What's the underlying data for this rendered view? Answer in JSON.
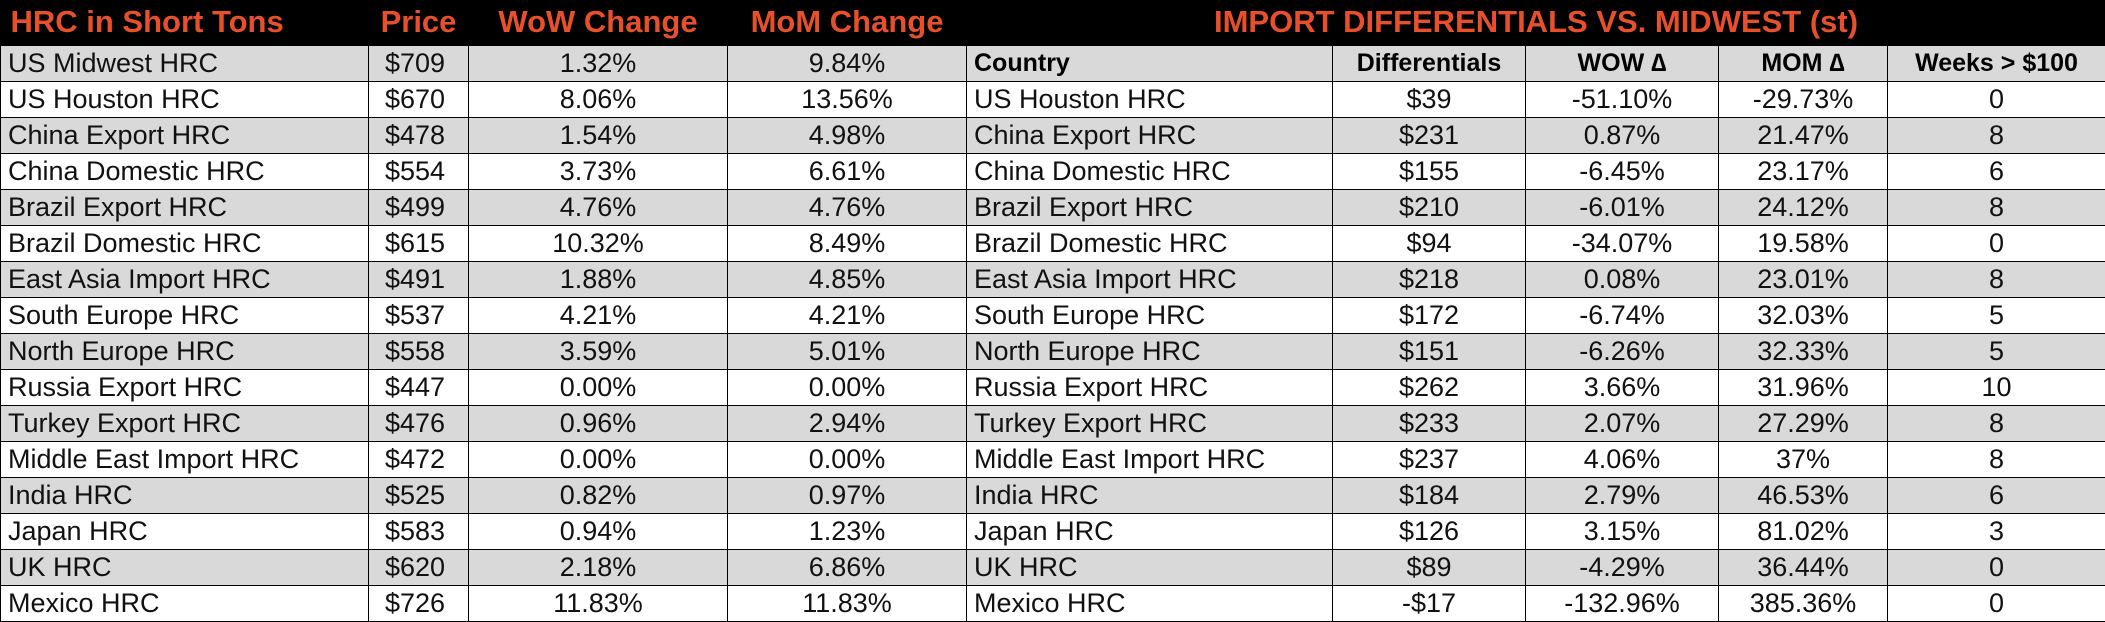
{
  "left_table": {
    "headers": [
      "HRC in Short Tons",
      "Price",
      "WoW Change",
      "MoM Change"
    ],
    "rows": [
      [
        "US Midwest HRC",
        "$709",
        "1.32%",
        "9.84%"
      ],
      [
        "US Houston HRC",
        "$670",
        "8.06%",
        "13.56%"
      ],
      [
        "China Export HRC",
        "$478",
        "1.54%",
        "4.98%"
      ],
      [
        "China Domestic HRC",
        "$554",
        "3.73%",
        "6.61%"
      ],
      [
        "Brazil Export HRC",
        "$499",
        "4.76%",
        "4.76%"
      ],
      [
        "Brazil Domestic HRC",
        "$615",
        "10.32%",
        "8.49%"
      ],
      [
        "East Asia Import HRC",
        "$491",
        "1.88%",
        "4.85%"
      ],
      [
        "South Europe HRC",
        "$537",
        "4.21%",
        "4.21%"
      ],
      [
        "North Europe HRC",
        "$558",
        "3.59%",
        "5.01%"
      ],
      [
        "Russia Export HRC",
        "$447",
        "0.00%",
        "0.00%"
      ],
      [
        "Turkey Export HRC",
        "$476",
        "0.96%",
        "2.94%"
      ],
      [
        "Middle East Import HRC",
        "$472",
        "0.00%",
        "0.00%"
      ],
      [
        "India HRC",
        "$525",
        "0.82%",
        "0.97%"
      ],
      [
        "Japan HRC",
        "$583",
        "0.94%",
        "1.23%"
      ],
      [
        "UK HRC",
        "$620",
        "2.18%",
        "6.86%"
      ],
      [
        "Mexico HRC",
        "$726",
        "11.83%",
        "11.83%"
      ]
    ]
  },
  "right_table": {
    "title": "IMPORT DIFFERENTIALS VS. MIDWEST (st)",
    "headers": [
      "Country",
      "Differentials",
      "WOW ∆",
      "MOM ∆",
      "Weeks > $100"
    ],
    "rows": [
      [
        "US Houston HRC",
        "$39",
        "-51.10%",
        "-29.73%",
        "0"
      ],
      [
        "China Export HRC",
        "$231",
        "0.87%",
        "21.47%",
        "8"
      ],
      [
        "China Domestic HRC",
        "$155",
        "-6.45%",
        "23.17%",
        "6"
      ],
      [
        "Brazil Export HRC",
        "$210",
        "-6.01%",
        "24.12%",
        "8"
      ],
      [
        "Brazil Domestic HRC",
        "$94",
        "-34.07%",
        "19.58%",
        "0"
      ],
      [
        "East Asia Import HRC",
        "$218",
        "0.08%",
        "23.01%",
        "8"
      ],
      [
        "South Europe HRC",
        "$172",
        "-6.74%",
        "32.03%",
        "5"
      ],
      [
        "North Europe HRC",
        "$151",
        "-6.26%",
        "32.33%",
        "5"
      ],
      [
        "Russia Export HRC",
        "$262",
        "3.66%",
        "31.96%",
        "10"
      ],
      [
        "Turkey Export HRC",
        "$233",
        "2.07%",
        "27.29%",
        "8"
      ],
      [
        "Middle East Import HRC",
        "$237",
        "4.06%",
        "37%",
        "8"
      ],
      [
        "India HRC",
        "$184",
        "2.79%",
        "46.53%",
        "6"
      ],
      [
        "Japan HRC",
        "$126",
        "3.15%",
        "81.02%",
        "3"
      ],
      [
        "UK HRC",
        "$89",
        "-4.29%",
        "36.44%",
        "0"
      ],
      [
        "Mexico HRC",
        "-$17",
        "-132.96%",
        "385.36%",
        "0"
      ]
    ]
  },
  "colors": {
    "header_text": "#e8502c",
    "header_bg": "#000000",
    "subheader_bg": "#1297aa",
    "row_alt": "#d9d9d9",
    "row": "#ffffff"
  }
}
